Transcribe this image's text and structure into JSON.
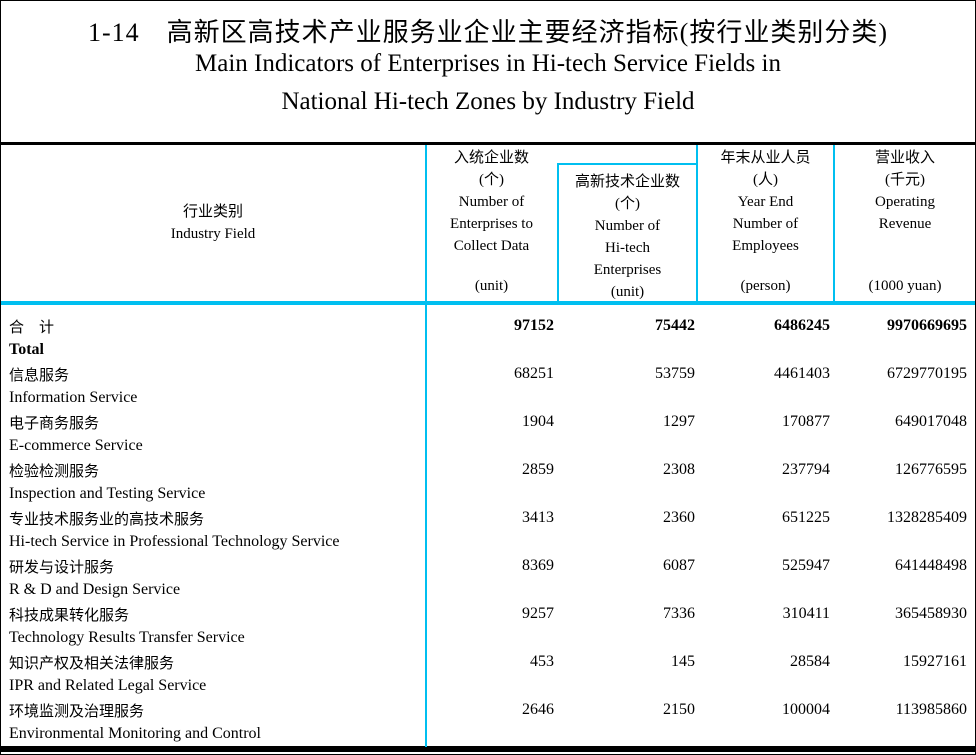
{
  "colors": {
    "accent_cyan": "#00BFF0",
    "border_black": "#000000"
  },
  "title": {
    "cn": "1-14　高新区高技术产业服务业企业主要经济指标(按行业类别分类)",
    "en_line1": "Main Indicators of Enterprises in Hi-tech Service Fields in",
    "en_line2": "National Hi-tech Zones by Industry Field"
  },
  "table": {
    "header": {
      "col1": {
        "cn": "行业类别",
        "en": "Industry Field"
      },
      "col2": {
        "lines": [
          "入统企业数",
          "(个)",
          "Number of",
          "Enterprises to",
          "Collect Data"
        ],
        "unit": "(unit)"
      },
      "col3": {
        "lines": [
          "高新技术企业数",
          "(个)",
          "Number of",
          "Hi-tech",
          "Enterprises"
        ],
        "unit": "(unit)"
      },
      "col4": {
        "lines": [
          "年末从业人员",
          "(人)",
          "Year End",
          "Number of",
          "Employees"
        ],
        "unit": "(person)"
      },
      "col5": {
        "lines": [
          "营业收入",
          "(千元)",
          "Operating",
          "Revenue"
        ],
        "unit": "(1000 yuan)"
      }
    },
    "rows": [
      {
        "cn": "合　计",
        "en": "Total",
        "values": [
          "97152",
          "75442",
          "6486245",
          "9970669695"
        ]
      },
      {
        "cn": "信息服务",
        "en": "Information Service",
        "values": [
          "68251",
          "53759",
          "4461403",
          "6729770195"
        ]
      },
      {
        "cn": "电子商务服务",
        "en": "E-commerce Service",
        "values": [
          "1904",
          "1297",
          "170877",
          "649017048"
        ]
      },
      {
        "cn": "检验检测服务",
        "en": "Inspection and Testing Service",
        "values": [
          "2859",
          "2308",
          "237794",
          "126776595"
        ]
      },
      {
        "cn": "专业技术服务业的高技术服务",
        "en": "Hi-tech Service in Professional Technology Service",
        "values": [
          "3413",
          "2360",
          "651225",
          "1328285409"
        ]
      },
      {
        "cn": "研发与设计服务",
        "en": "R & D and Design Service",
        "values": [
          "8369",
          "6087",
          "525947",
          "641448498"
        ]
      },
      {
        "cn": "科技成果转化服务",
        "en": "Technology Results Transfer Service",
        "values": [
          "9257",
          "7336",
          "310411",
          "365458930"
        ]
      },
      {
        "cn": "知识产权及相关法律服务",
        "en": "IPR and Related Legal Service",
        "values": [
          "453",
          "145",
          "28584",
          "15927161"
        ]
      },
      {
        "cn": "环境监测及治理服务",
        "en": "Environmental Monitoring and Control",
        "values": [
          "2646",
          "2150",
          "100004",
          "113985860"
        ]
      }
    ]
  }
}
